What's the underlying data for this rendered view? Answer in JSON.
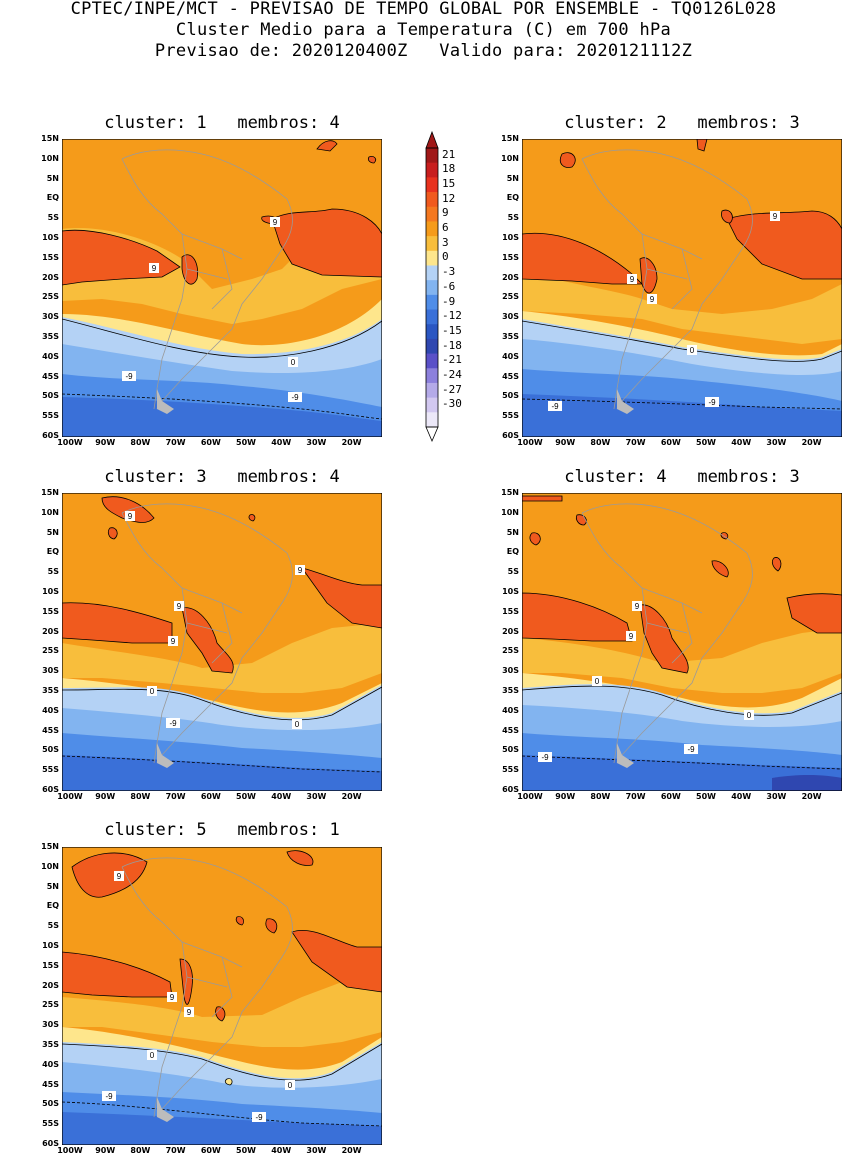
{
  "header": {
    "line1": "CPTEC/INPE/MCT - PREVISAO DE TEMPO GLOBAL POR ENSEMBLE - TQ0126L028",
    "line2": "Cluster Medio para a Temperatura (C) em 700 hPa",
    "line3": "Previsao de: 2020120400Z   Valido para: 2020121112Z"
  },
  "axes": {
    "lat_labels": [
      "15N",
      "10N",
      "5N",
      "EQ",
      "5S",
      "10S",
      "15S",
      "20S",
      "25S",
      "30S",
      "35S",
      "40S",
      "45S",
      "50S",
      "55S",
      "60S"
    ],
    "lon_labels": [
      "100W",
      "90W",
      "80W",
      "70W",
      "60W",
      "50W",
      "40W",
      "30W",
      "20W"
    ]
  },
  "colorbar": {
    "labels": [
      "21",
      "18",
      "15",
      "12",
      "9",
      "6",
      "3",
      "0",
      "-3",
      "-6",
      "-9",
      "-12",
      "-15",
      "-18",
      "-21",
      "-24",
      "-27",
      "-30"
    ],
    "colors": [
      "#a01818",
      "#c81e1e",
      "#e8321e",
      "#f05a1e",
      "#f47820",
      "#f59b1a",
      "#f8be3c",
      "#fee68c",
      "#b4d2f5",
      "#82b4f0",
      "#4f8de8",
      "#3a70d8",
      "#2a56c2",
      "#2f47b0",
      "#5a50c8",
      "#8c80dc",
      "#b4aae8",
      "#d2c8f0",
      "#ece8f8"
    ]
  },
  "panels": [
    {
      "title": "cluster: 1   membros: 4",
      "labels": {
        "c9": [
          "9",
          "9"
        ],
        "c0": [
          "0"
        ],
        "cm9": [
          "-9",
          "-9"
        ]
      }
    },
    {
      "title": "cluster: 2   membros: 3",
      "labels": {
        "c9": [
          "9",
          "9",
          "9"
        ],
        "c0": [
          "0"
        ],
        "cm9": [
          "-9",
          "-9"
        ]
      }
    },
    {
      "title": "cluster: 3   membros: 4",
      "labels": {
        "c9": [
          "9",
          "9",
          "9",
          "9"
        ],
        "c0": [
          "0",
          "0"
        ],
        "cm9": [
          "-9"
        ]
      }
    },
    {
      "title": "cluster: 4   membros: 3",
      "labels": {
        "c9": [
          "9",
          "9"
        ],
        "c0": [
          "0",
          "0"
        ],
        "cm9": [
          "-9",
          "-9"
        ]
      }
    },
    {
      "title": "cluster: 5   membros: 1",
      "labels": {
        "c9": [
          "9",
          "9",
          "9"
        ],
        "c0": [
          "0",
          "0"
        ],
        "cm9": [
          "-9",
          "-9"
        ]
      }
    }
  ]
}
